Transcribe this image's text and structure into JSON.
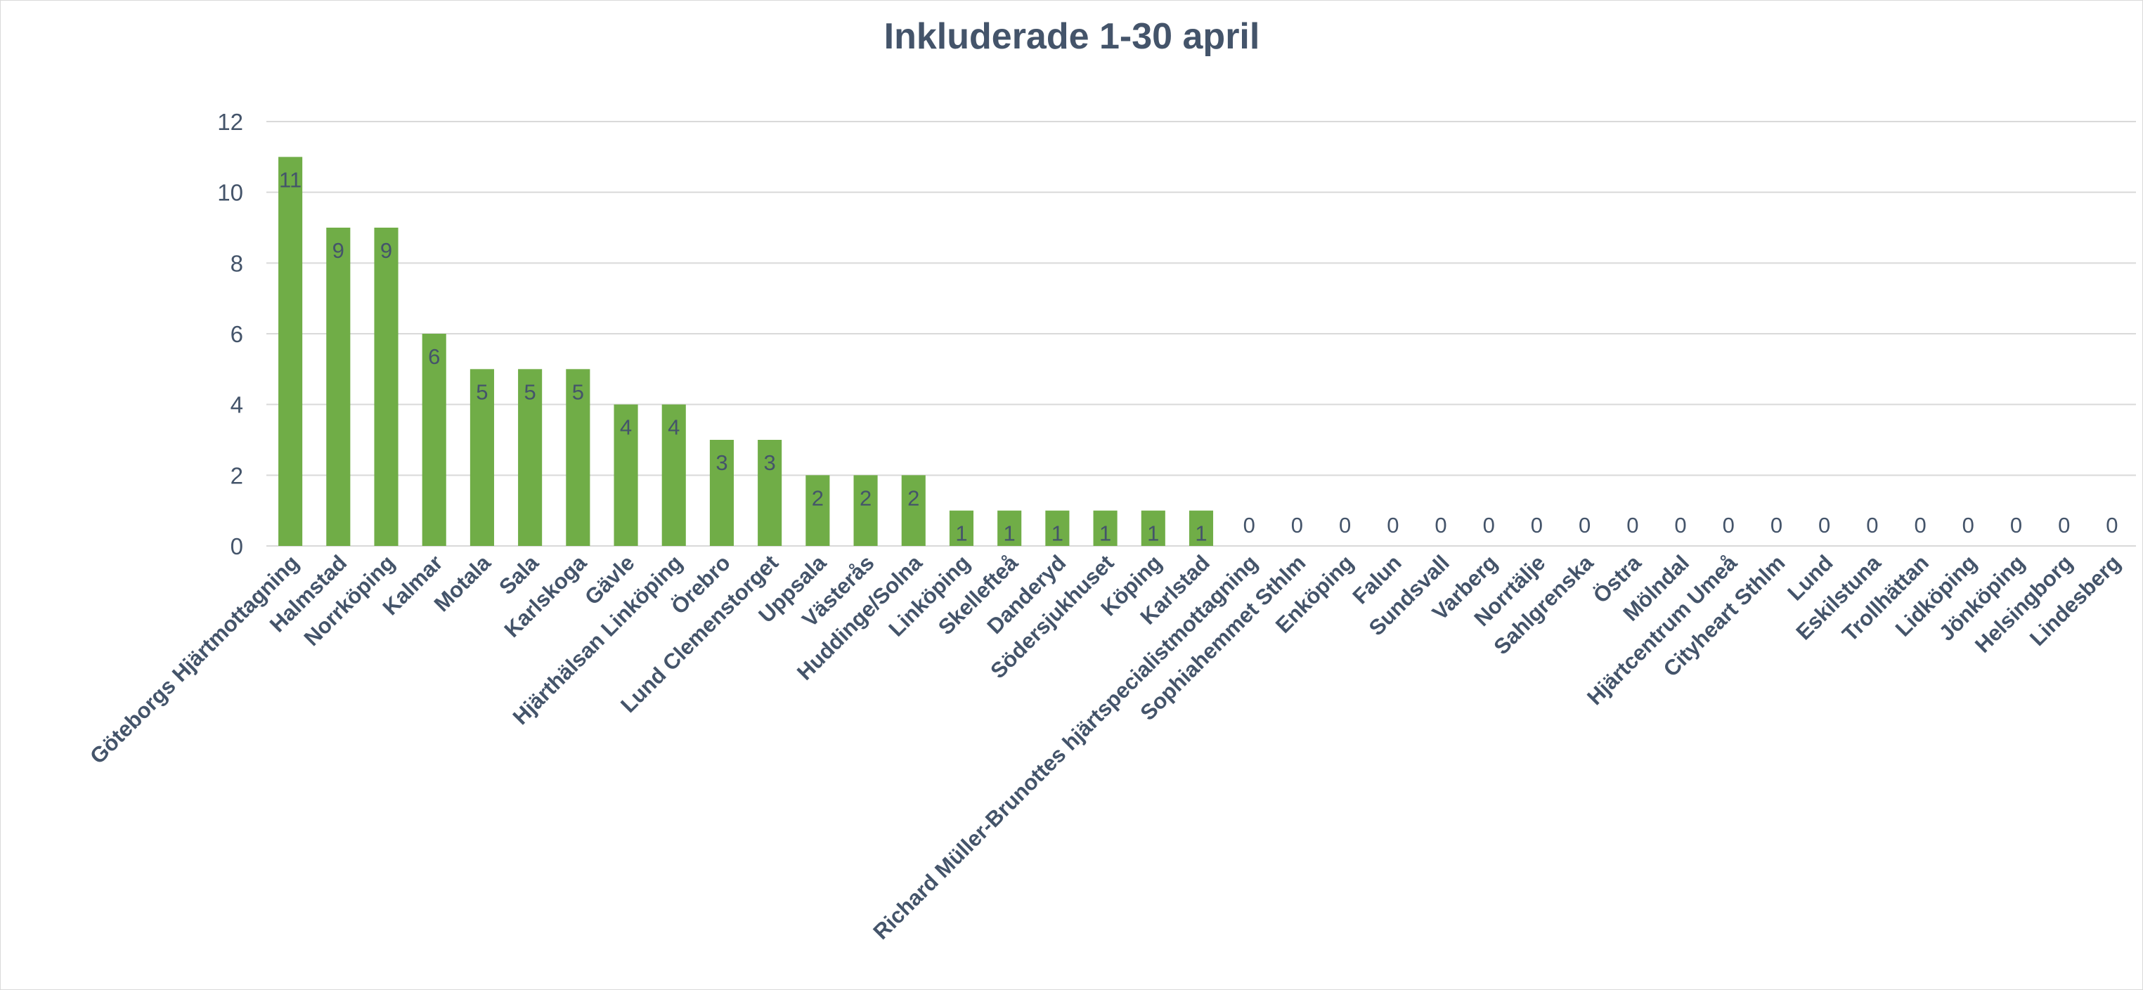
{
  "chart_data": {
    "type": "bar",
    "title": "Inkluderade 1-30 april",
    "xlabel": "",
    "ylabel": "",
    "ylim": [
      0,
      12
    ],
    "yticks": [
      0,
      2,
      4,
      6,
      8,
      10,
      12
    ],
    "grid": true,
    "legend": "none",
    "bar_color": "#70ad47",
    "gridline_color": "#d9d9d9",
    "text_color": "#44546a",
    "categories": [
      "Göteborgs Hjärtmottagning",
      "Halmstad",
      "Norrköping",
      "Kalmar",
      "Motala",
      "Sala",
      "Karlskoga",
      "Gävle",
      "Hjärthälsan Linköping",
      "Örebro",
      "Lund Clemenstorget",
      "Uppsala",
      "Västerås",
      "Huddinge/Solna",
      "Linköping",
      "Skellefteå",
      "Danderyd",
      "Södersjukhuset",
      "Köping",
      "Karlstad",
      "Richard Müller-Brunottes hjärtspecialistmottagning",
      "Sophiahemmet Sthlm",
      "Enköping",
      "Falun",
      "Sundsvall",
      "Varberg",
      "Norrtälje",
      "Sahlgrenska",
      "Östra",
      "Mölndal",
      "Hjärtcentrum Umeå",
      "Cityheart Sthlm",
      "Lund",
      "Eskilstuna",
      "Trollhättan",
      "Lidköping",
      "Jönköping",
      "Helsingborg",
      "Lindesberg"
    ],
    "values": [
      11,
      9,
      9,
      6,
      5,
      5,
      5,
      4,
      4,
      3,
      3,
      2,
      2,
      2,
      1,
      1,
      1,
      1,
      1,
      1,
      0,
      0,
      0,
      0,
      0,
      0,
      0,
      0,
      0,
      0,
      0,
      0,
      0,
      0,
      0,
      0,
      0,
      0,
      0
    ]
  }
}
